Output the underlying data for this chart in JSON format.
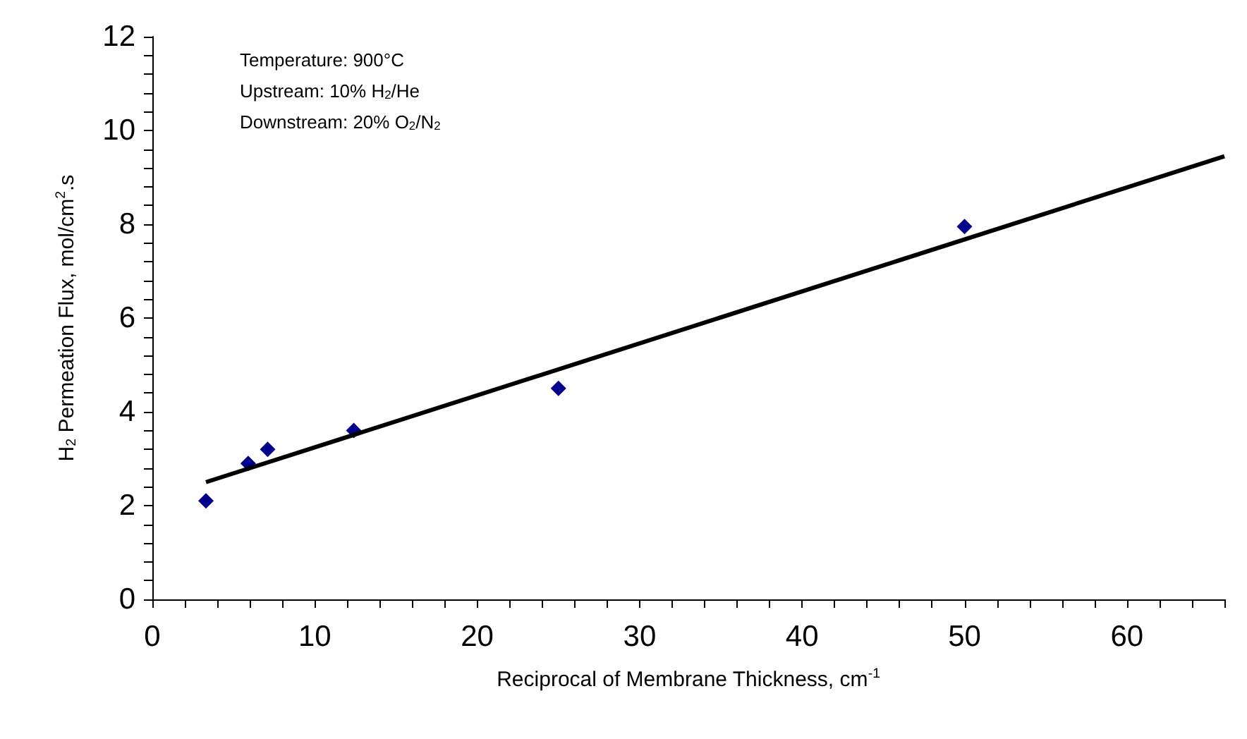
{
  "chart_data": {
    "type": "scatter",
    "xlabel": "Reciprocal of Membrane Thickness, cm$^{-1}$",
    "ylabel": "H$_{2}$ Permeation Flux, mol/cm$^{2}$.s",
    "annotations": [
      "Temperature: 900°C",
      "Upstream: 10% H$_{2}$/He",
      "Downstream: 20% O$_{2}$/N$_{2}$"
    ],
    "xlim": [
      0,
      66
    ],
    "ylim": [
      0,
      12
    ],
    "xticks": [
      0,
      {
        "value": 2,
        "label": null
      },
      {
        "value": 4,
        "label": null
      },
      {
        "value": 6,
        "label": null
      },
      {
        "value": 8,
        "label": null
      },
      10,
      {
        "value": 12,
        "label": null
      },
      {
        "value": 14,
        "label": null
      },
      {
        "value": 16,
        "label": null
      },
      {
        "value": 18,
        "label": null
      },
      20,
      {
        "value": 22,
        "label": null
      },
      {
        "value": 24,
        "label": null
      },
      {
        "value": 26,
        "label": null
      },
      {
        "value": 28,
        "label": null
      },
      30,
      {
        "value": 32,
        "label": null
      },
      {
        "value": 34,
        "label": null
      },
      {
        "value": 36,
        "label": null
      },
      {
        "value": 38,
        "label": null
      },
      40,
      {
        "value": 42,
        "label": null
      },
      {
        "value": 44,
        "label": null
      },
      {
        "value": 46,
        "label": null
      },
      {
        "value": 48,
        "label": null
      },
      50,
      {
        "value": 52,
        "label": null
      },
      {
        "value": 54,
        "label": null
      },
      {
        "value": 56,
        "label": null
      },
      {
        "value": 58,
        "label": null
      },
      60,
      {
        "value": 62,
        "label": null
      },
      {
        "value": 64,
        "label": null
      },
      {
        "value": 66,
        "label": null
      }
    ],
    "yticks": [
      0,
      {
        "value": 0.4,
        "label": null
      },
      {
        "value": 0.8,
        "label": null
      },
      {
        "value": 1.2,
        "label": null
      },
      {
        "value": 1.6,
        "label": null
      },
      2,
      {
        "value": 2.4,
        "label": null
      },
      {
        "value": 2.8,
        "label": null
      },
      {
        "value": 3.2,
        "label": null
      },
      {
        "value": 3.6,
        "label": null
      },
      4,
      {
        "value": 4.4,
        "label": null
      },
      {
        "value": 4.8,
        "label": null
      },
      {
        "value": 5.2,
        "label": null
      },
      {
        "value": 5.6,
        "label": null
      },
      6,
      {
        "value": 6.4,
        "label": null
      },
      {
        "value": 6.8,
        "label": null
      },
      {
        "value": 7.2,
        "label": null
      },
      {
        "value": 7.6,
        "label": null
      },
      8,
      {
        "value": 8.4,
        "label": null
      },
      {
        "value": 8.8,
        "label": null
      },
      {
        "value": 9.2,
        "label": null
      },
      {
        "value": 9.6,
        "label": null
      },
      10,
      {
        "value": 10.4,
        "label": null
      },
      {
        "value": 10.8,
        "label": null
      },
      {
        "value": 11.2,
        "label": null
      },
      {
        "value": 11.6,
        "label": null
      },
      12
    ],
    "grid": false,
    "series": [
      {
        "color": "#00008b",
        "marker": "diamond",
        "x": [
          3.3,
          5.9,
          7.1,
          12.4,
          25,
          50
        ],
        "values": [
          2.1,
          2.9,
          3.2,
          3.6,
          4.5,
          7.95
        ]
      },
      {
        "type": "line",
        "color": "#000000",
        "marker": "none",
        "line_style": "solid",
        "x": [
          3.3,
          66
        ],
        "values": [
          2.5,
          9.45
        ]
      }
    ]
  }
}
